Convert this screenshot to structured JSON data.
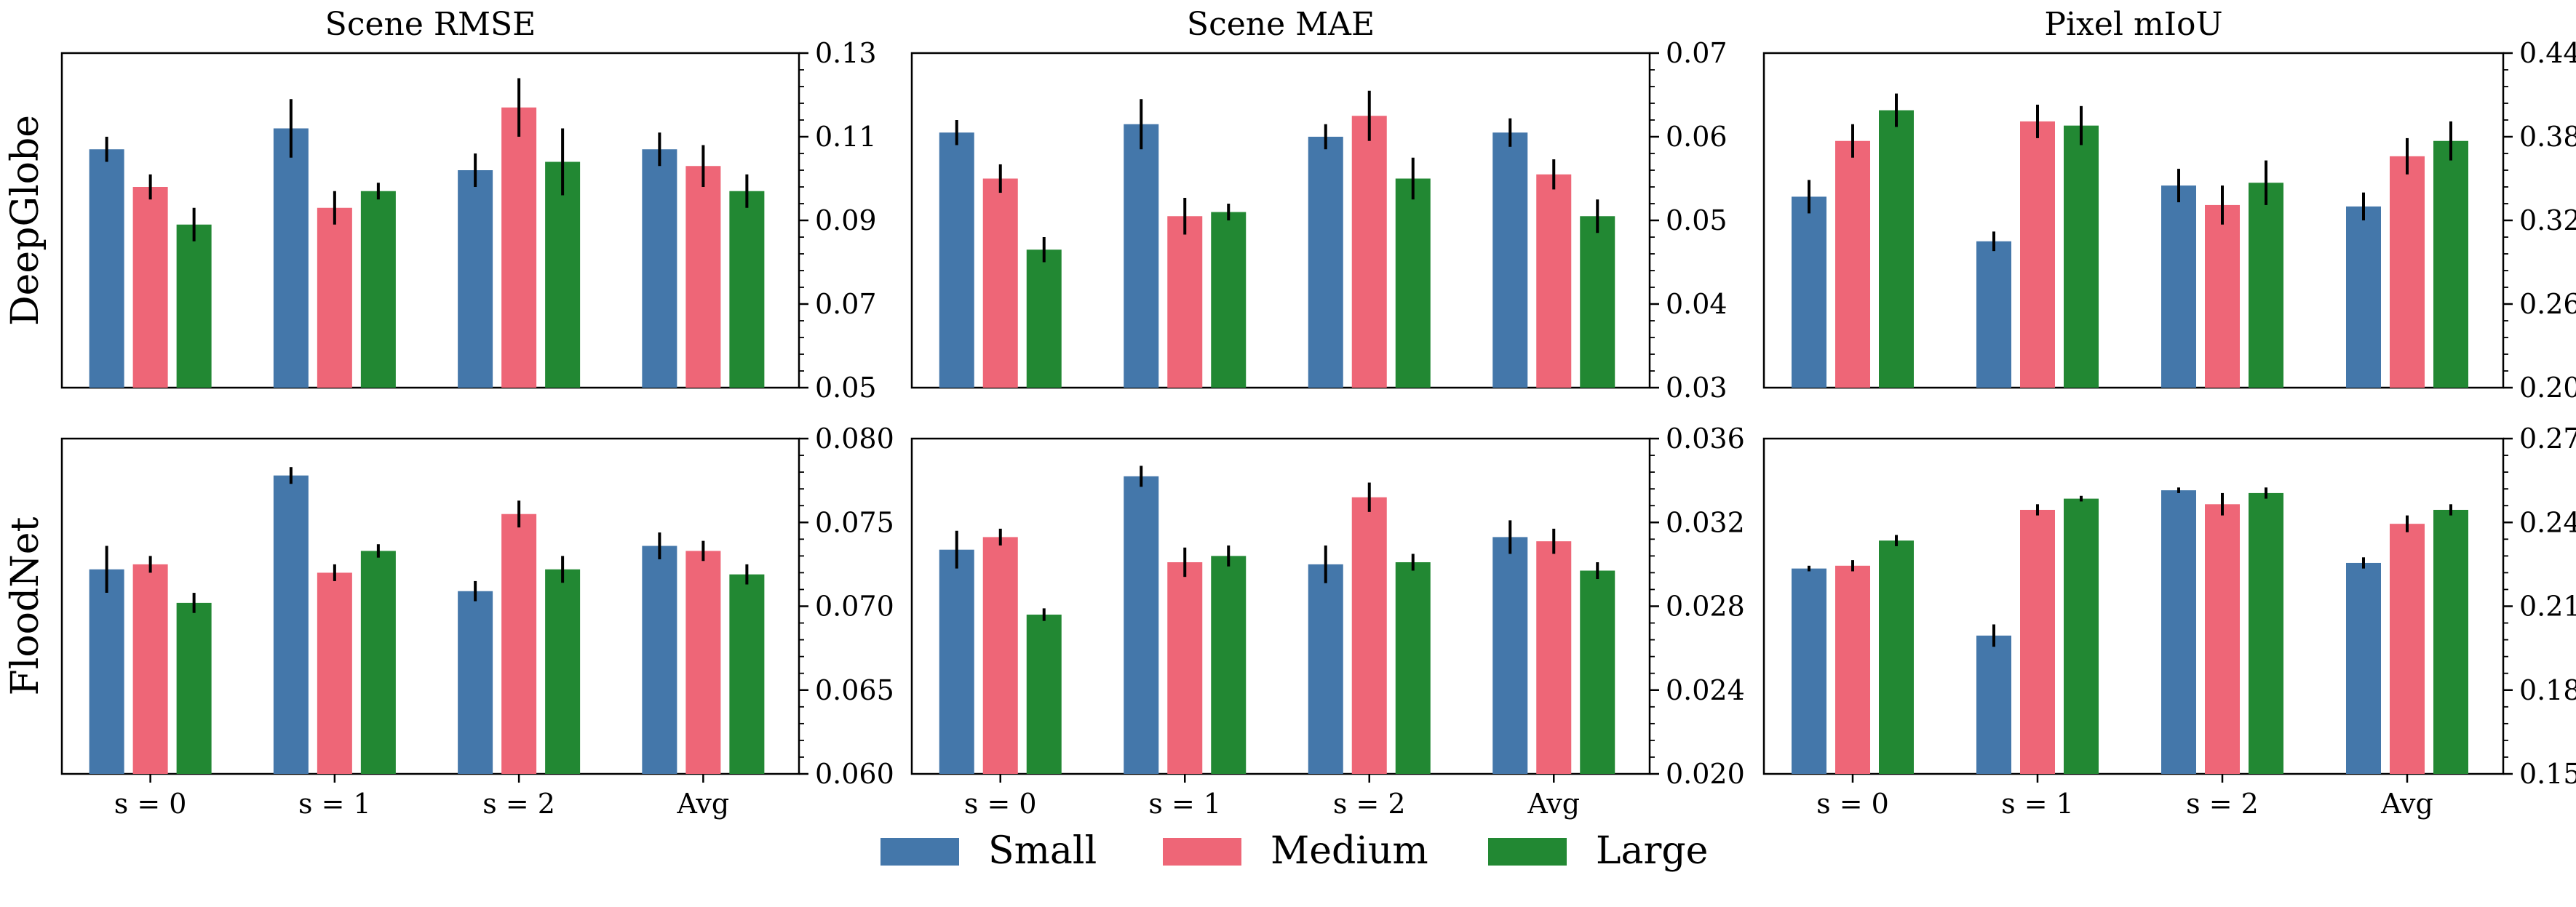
{
  "chart_data": {
    "type": "bar",
    "categories": [
      "s = 0",
      "s = 1",
      "s = 2",
      "Avg"
    ],
    "series_names": [
      "Small",
      "Medium",
      "Large"
    ],
    "colors": {
      "Small": "#4477aa",
      "Medium": "#ee6677",
      "Large": "#228833"
    },
    "legend": {
      "placement": "bottom-center",
      "entries": [
        "Small",
        "Medium",
        "Large"
      ]
    },
    "columns": [
      "Scene RMSE",
      "Scene MAE",
      "Pixel mIoU"
    ],
    "rows": [
      "DeepGlobe",
      "FloodNet"
    ],
    "grid": false,
    "panels": [
      {
        "row": "DeepGlobe",
        "column": "Scene RMSE",
        "ylim": [
          0.05,
          0.13
        ],
        "yticks": [
          "0.05",
          "0.07",
          "0.09",
          "0.11",
          "0.13"
        ],
        "series": [
          {
            "name": "Small",
            "values": [
              0.107,
              0.112,
              0.102,
              0.107
            ],
            "errors": [
              0.003,
              0.007,
              0.004,
              0.004
            ]
          },
          {
            "name": "Medium",
            "values": [
              0.098,
              0.093,
              0.117,
              0.103
            ],
            "errors": [
              0.003,
              0.004,
              0.007,
              0.005
            ]
          },
          {
            "name": "Large",
            "values": [
              0.089,
              0.097,
              0.104,
              0.097
            ],
            "errors": [
              0.004,
              0.002,
              0.008,
              0.004
            ]
          }
        ]
      },
      {
        "row": "DeepGlobe",
        "column": "Scene MAE",
        "ylim": [
          0.03,
          0.07
        ],
        "yticks": [
          "0.03",
          "0.04",
          "0.05",
          "0.06",
          "0.07"
        ],
        "series": [
          {
            "name": "Small",
            "values": [
              0.0605,
              0.0615,
              0.06,
              0.0605
            ],
            "errors": [
              0.0015,
              0.003,
              0.0015,
              0.0017
            ]
          },
          {
            "name": "Medium",
            "values": [
              0.055,
              0.0505,
              0.0625,
              0.0555
            ],
            "errors": [
              0.0017,
              0.0022,
              0.003,
              0.0018
            ]
          },
          {
            "name": "Large",
            "values": [
              0.0465,
              0.051,
              0.055,
              0.0505
            ],
            "errors": [
              0.0015,
              0.001,
              0.0025,
              0.002
            ]
          }
        ]
      },
      {
        "row": "DeepGlobe",
        "column": "Pixel mIoU",
        "ylim": [
          0.2,
          0.44
        ],
        "yticks": [
          "0.20",
          "0.26",
          "0.32",
          "0.38",
          "0.44"
        ],
        "series": [
          {
            "name": "Small",
            "values": [
              0.337,
              0.305,
              0.345,
              0.33
            ],
            "errors": [
              0.012,
              0.007,
              0.012,
              0.01
            ]
          },
          {
            "name": "Medium",
            "values": [
              0.377,
              0.391,
              0.331,
              0.366
            ],
            "errors": [
              0.012,
              0.012,
              0.014,
              0.013
            ]
          },
          {
            "name": "Large",
            "values": [
              0.399,
              0.388,
              0.347,
              0.377
            ],
            "errors": [
              0.012,
              0.014,
              0.016,
              0.014
            ]
          }
        ]
      },
      {
        "row": "FloodNet",
        "column": "Scene RMSE",
        "ylim": [
          0.06,
          0.08
        ],
        "yticks": [
          "0.060",
          "0.065",
          "0.070",
          "0.075",
          "0.080"
        ],
        "series": [
          {
            "name": "Small",
            "values": [
              0.0722,
              0.0778,
              0.0709,
              0.0736
            ],
            "errors": [
              0.0014,
              0.0005,
              0.0006,
              0.0008
            ]
          },
          {
            "name": "Medium",
            "values": [
              0.0725,
              0.072,
              0.0755,
              0.0733
            ],
            "errors": [
              0.0005,
              0.0005,
              0.0008,
              0.0006
            ]
          },
          {
            "name": "Large",
            "values": [
              0.0702,
              0.0733,
              0.0722,
              0.0719
            ],
            "errors": [
              0.0006,
              0.0004,
              0.0008,
              0.0006
            ]
          }
        ]
      },
      {
        "row": "FloodNet",
        "column": "Scene MAE",
        "ylim": [
          0.02,
          0.036
        ],
        "yticks": [
          "0.020",
          "0.024",
          "0.028",
          "0.032",
          "0.036"
        ],
        "series": [
          {
            "name": "Small",
            "values": [
              0.0307,
              0.0342,
              0.03,
              0.0313
            ],
            "errors": [
              0.0009,
              0.0005,
              0.0009,
              0.0008
            ]
          },
          {
            "name": "Medium",
            "values": [
              0.0313,
              0.0301,
              0.0332,
              0.0311
            ],
            "errors": [
              0.0004,
              0.0007,
              0.0007,
              0.0006
            ]
          },
          {
            "name": "Large",
            "values": [
              0.0276,
              0.0304,
              0.0301,
              0.0297
            ],
            "errors": [
              0.0003,
              0.0005,
              0.0004,
              0.0004
            ]
          }
        ]
      },
      {
        "row": "FloodNet",
        "column": "Pixel mIoU",
        "ylim": [
          0.15,
          0.27
        ],
        "yticks": [
          "0.15",
          "0.18",
          "0.21",
          "0.24",
          "0.27"
        ],
        "series": [
          {
            "name": "Small",
            "values": [
              0.2235,
              0.1995,
              0.2515,
              0.2255
            ],
            "errors": [
              0.001,
              0.004,
              0.001,
              0.002
            ]
          },
          {
            "name": "Medium",
            "values": [
              0.2245,
              0.2445,
              0.2465,
              0.2395
            ],
            "errors": [
              0.002,
              0.002,
              0.004,
              0.003
            ]
          },
          {
            "name": "Large",
            "values": [
              0.2335,
              0.2485,
              0.2505,
              0.2445
            ],
            "errors": [
              0.002,
              0.001,
              0.002,
              0.002
            ]
          }
        ]
      }
    ]
  }
}
